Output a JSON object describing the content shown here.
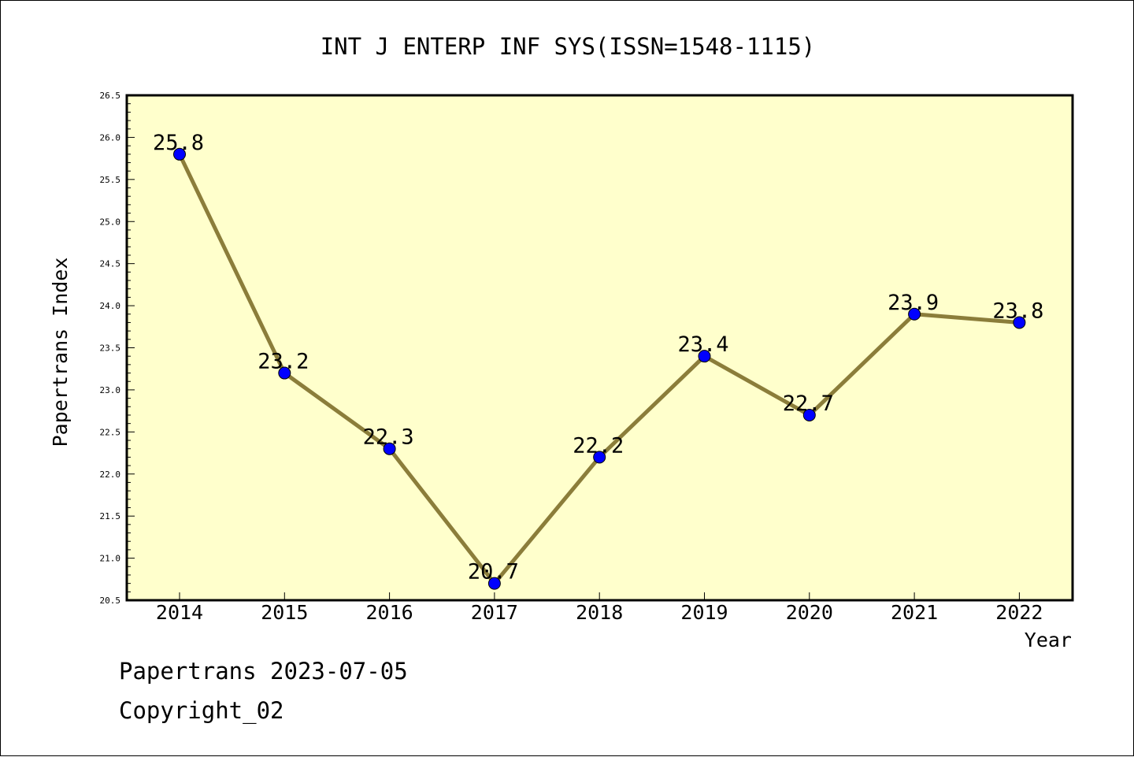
{
  "chart_data": {
    "type": "line",
    "title": "INT J ENTERP INF SYS(ISSN=1548-1115)",
    "xlabel": "Year",
    "ylabel": "Papertrans Index",
    "categories": [
      "2014",
      "2015",
      "2016",
      "2017",
      "2018",
      "2019",
      "2020",
      "2021",
      "2022"
    ],
    "series": [
      {
        "values": [
          25.8,
          23.2,
          22.3,
          20.7,
          22.2,
          23.4,
          22.7,
          23.9,
          23.8
        ]
      }
    ],
    "data_labels": [
      "25.8",
      "23.2",
      "22.3",
      "20.7",
      "22.2",
      "23.4",
      "22.7",
      "23.9",
      "23.8"
    ],
    "ylim": [
      20.5,
      26.5
    ],
    "yticks": [
      "20.5",
      "21.0",
      "21.5",
      "22.0",
      "22.5",
      "23.0",
      "23.5",
      "24.0",
      "24.5",
      "25.0",
      "25.5",
      "26.0",
      "26.5"
    ],
    "grid": false,
    "legend": "none",
    "colors": {
      "plot_background": "#ffffcc",
      "line": "#8b7d3a",
      "marker": "#0000ff"
    }
  },
  "footer": {
    "line1": "Papertrans 2023-07-05",
    "line2": "Copyright_02"
  }
}
